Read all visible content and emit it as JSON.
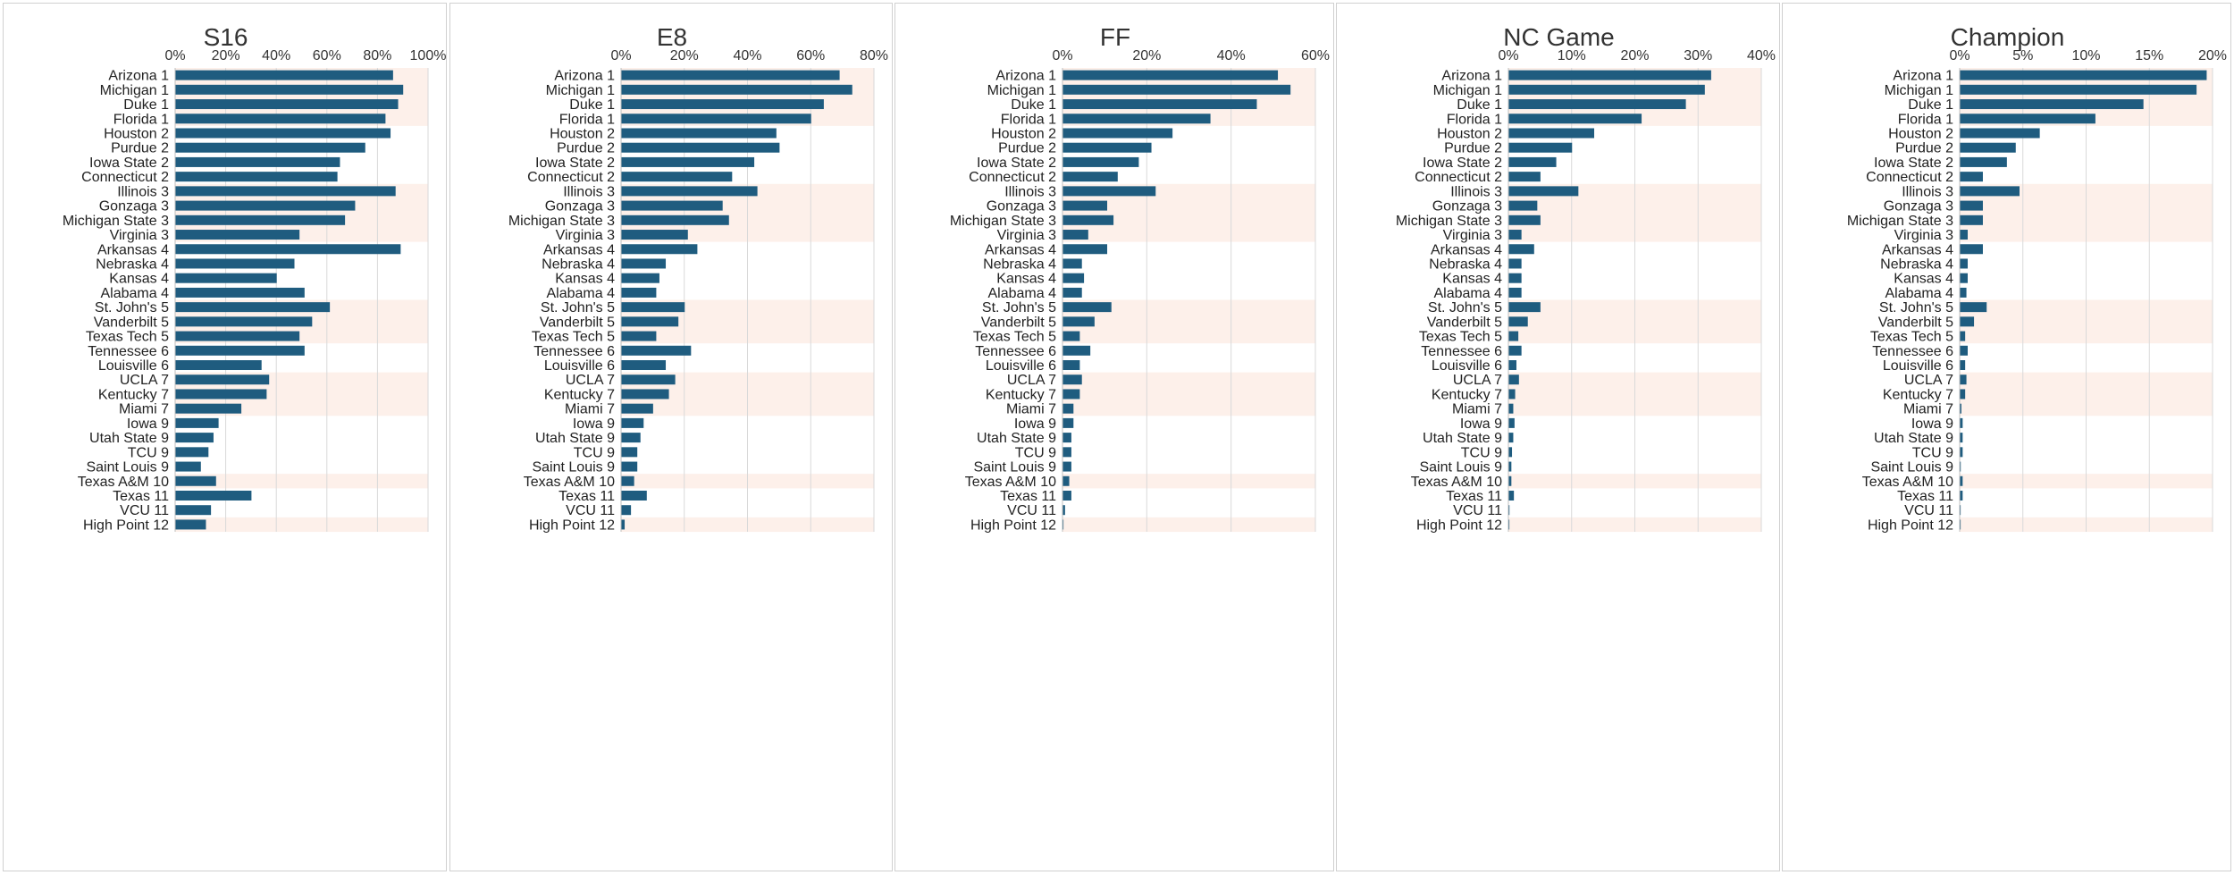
{
  "teams": [
    "Arizona 1",
    "Michigan 1",
    "Duke 1",
    "Florida 1",
    "Houston 2",
    "Purdue 2",
    "Iowa State 2",
    "Connecticut 2",
    "Illinois 3",
    "Gonzaga 3",
    "Michigan State 3",
    "Virginia 3",
    "Arkansas 4",
    "Nebraska 4",
    "Kansas 4",
    "Alabama 4",
    "St. John's 5",
    "Vanderbilt 5",
    "Texas Tech 5",
    "Tennessee 6",
    "Louisville 6",
    "UCLA 7",
    "Kentucky 7",
    "Miami 7",
    "Iowa 9",
    "Utah State 9",
    "TCU 9",
    "Saint Louis 9",
    "Texas A&M 10",
    "Texas 11",
    "VCU 11",
    "High Point 12"
  ],
  "colors": {
    "bar": "#1f5c7f",
    "band": "#fdf0ea",
    "grid": "#d9d9d9",
    "border": "#d0d0d0"
  },
  "chart_data": [
    {
      "type": "bar",
      "orientation": "horizontal",
      "title": "S16",
      "xlim": [
        0,
        1.0
      ],
      "ticks": [
        0,
        0.2,
        0.4,
        0.6,
        0.8,
        1.0
      ],
      "tick_labels": [
        "0%",
        "20%",
        "40%",
        "60%",
        "80%",
        "100%"
      ],
      "values": [
        0.86,
        0.9,
        0.88,
        0.83,
        0.85,
        0.75,
        0.65,
        0.64,
        0.87,
        0.71,
        0.67,
        0.49,
        0.89,
        0.47,
        0.4,
        0.51,
        0.61,
        0.54,
        0.49,
        0.51,
        0.34,
        0.37,
        0.36,
        0.26,
        0.17,
        0.15,
        0.13,
        0.1,
        0.16,
        0.3,
        0.14,
        0.12
      ]
    },
    {
      "type": "bar",
      "orientation": "horizontal",
      "title": "E8",
      "xlim": [
        0,
        0.8
      ],
      "ticks": [
        0,
        0.2,
        0.4,
        0.6,
        0.8
      ],
      "tick_labels": [
        "0%",
        "20%",
        "40%",
        "60%",
        "80%"
      ],
      "values": [
        0.69,
        0.73,
        0.64,
        0.6,
        0.49,
        0.5,
        0.42,
        0.35,
        0.43,
        0.32,
        0.34,
        0.21,
        0.24,
        0.14,
        0.12,
        0.11,
        0.2,
        0.18,
        0.11,
        0.22,
        0.14,
        0.17,
        0.15,
        0.1,
        0.07,
        0.06,
        0.05,
        0.05,
        0.04,
        0.08,
        0.03,
        0.01
      ]
    },
    {
      "type": "bar",
      "orientation": "horizontal",
      "title": "FF",
      "xlim": [
        0,
        0.6
      ],
      "ticks": [
        0,
        0.2,
        0.4,
        0.6
      ],
      "tick_labels": [
        "0%",
        "20%",
        "40%",
        "60%"
      ],
      "values": [
        0.51,
        0.54,
        0.46,
        0.35,
        0.26,
        0.21,
        0.18,
        0.13,
        0.22,
        0.105,
        0.12,
        0.06,
        0.105,
        0.045,
        0.05,
        0.045,
        0.115,
        0.075,
        0.04,
        0.065,
        0.04,
        0.045,
        0.04,
        0.025,
        0.025,
        0.02,
        0.02,
        0.02,
        0.015,
        0.02,
        0.005,
        0.001
      ]
    },
    {
      "type": "bar",
      "orientation": "horizontal",
      "title": "NC Game",
      "xlim": [
        0,
        0.4
      ],
      "ticks": [
        0,
        0.1,
        0.2,
        0.3,
        0.4
      ],
      "tick_labels": [
        "0%",
        "10%",
        "20%",
        "30%",
        "40%"
      ],
      "values": [
        0.32,
        0.31,
        0.28,
        0.21,
        0.135,
        0.1,
        0.075,
        0.05,
        0.11,
        0.045,
        0.05,
        0.02,
        0.04,
        0.02,
        0.02,
        0.02,
        0.05,
        0.03,
        0.015,
        0.02,
        0.012,
        0.016,
        0.01,
        0.007,
        0.009,
        0.007,
        0.005,
        0.004,
        0.004,
        0.008,
        0.001,
        0.0005
      ]
    },
    {
      "type": "bar",
      "orientation": "horizontal",
      "title": "Champion",
      "xlim": [
        0,
        0.2
      ],
      "ticks": [
        0,
        0.05,
        0.1,
        0.15,
        0.2
      ],
      "tick_labels": [
        "0%",
        "5%",
        "10%",
        "15%",
        "20%"
      ],
      "values": [
        0.195,
        0.187,
        0.145,
        0.107,
        0.063,
        0.044,
        0.037,
        0.018,
        0.047,
        0.018,
        0.018,
        0.006,
        0.018,
        0.006,
        0.006,
        0.005,
        0.021,
        0.011,
        0.004,
        0.006,
        0.004,
        0.005,
        0.004,
        0.001,
        0.002,
        0.002,
        0.002,
        0.0005,
        0.002,
        0.002,
        0.0002,
        0.0001
      ]
    }
  ]
}
